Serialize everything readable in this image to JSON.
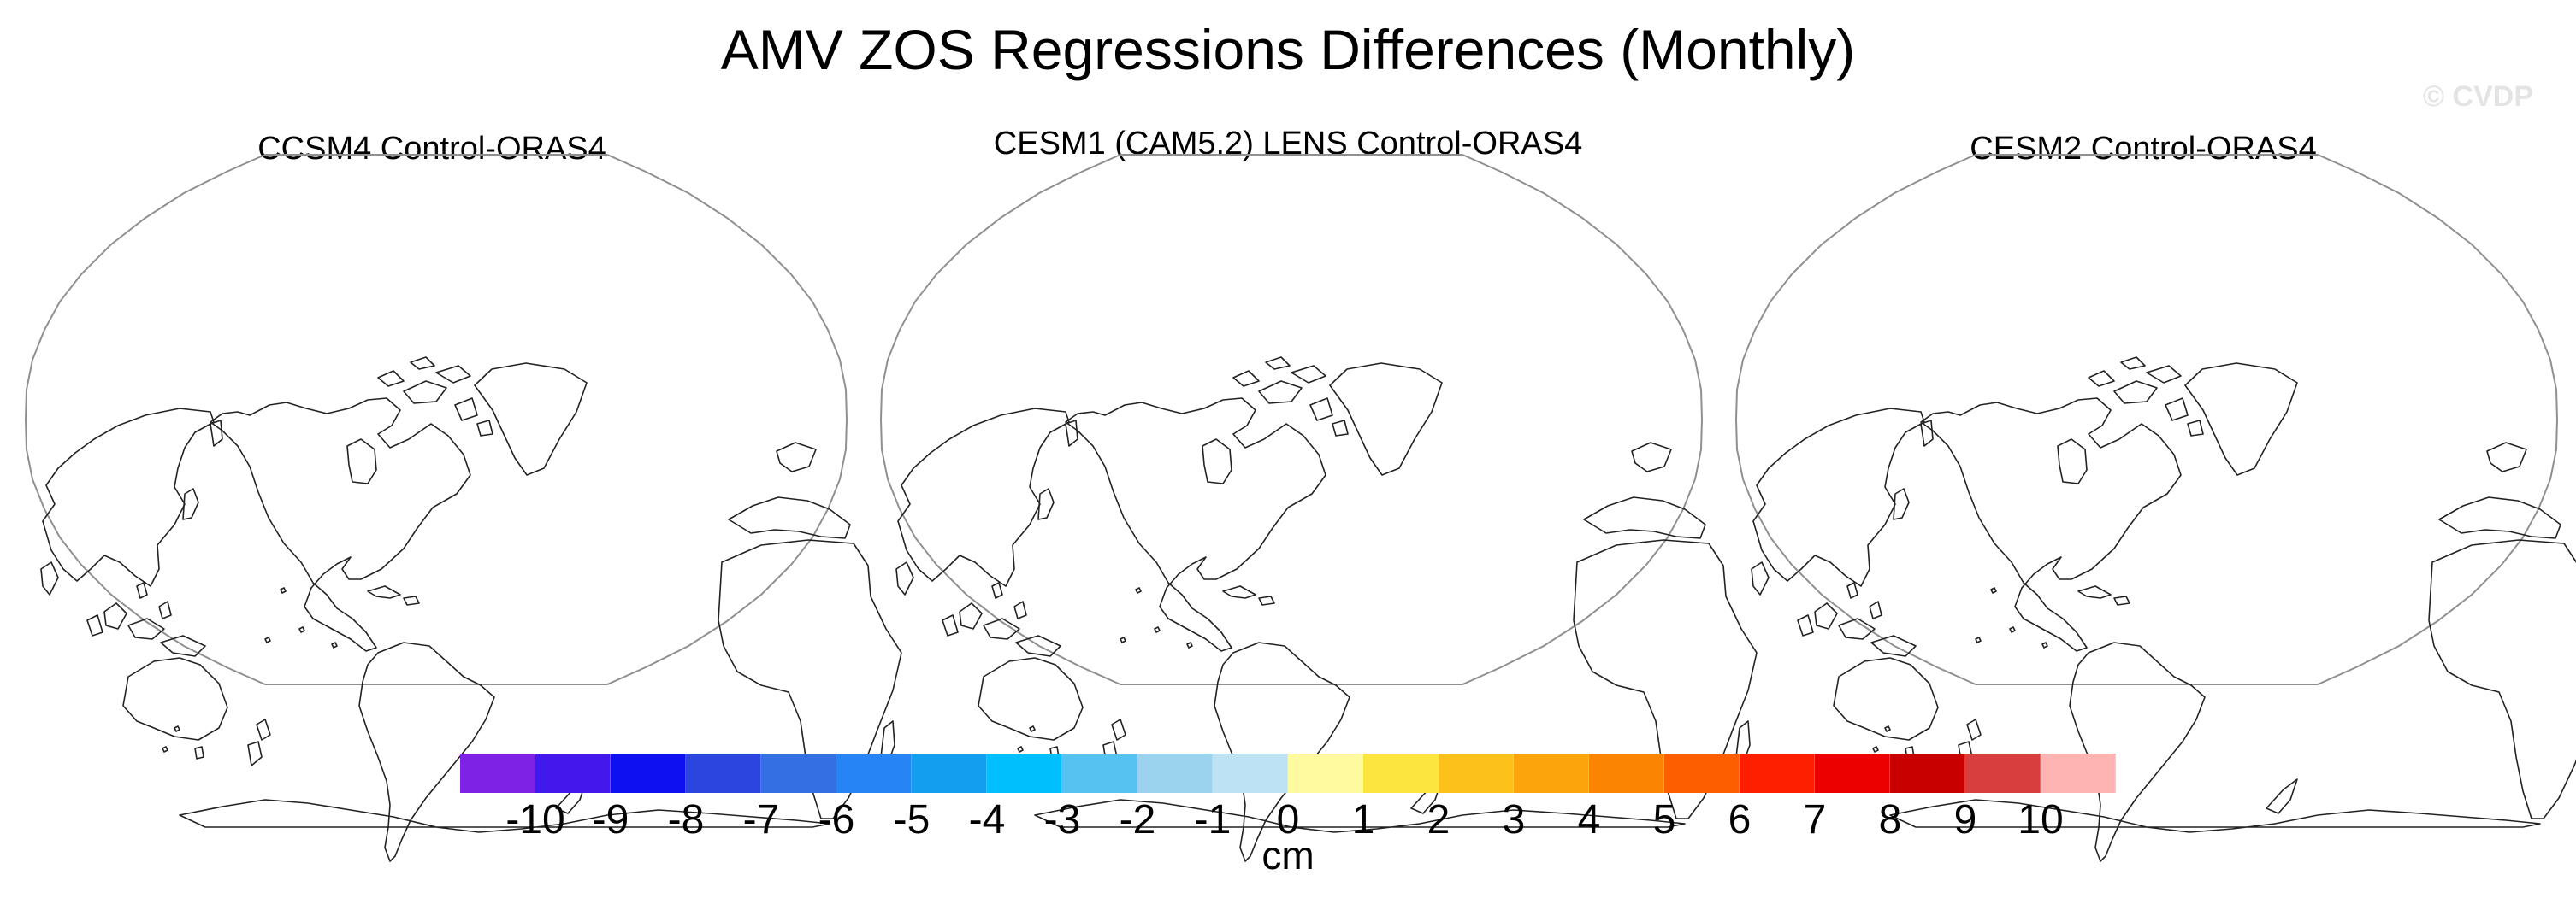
{
  "title": "AMV ZOS Regressions Differences (Monthly)",
  "watermark": "© CVDP",
  "panels": [
    {
      "title": "CCSM4 Control-ORAS4"
    },
    {
      "title": "CESM1 (CAM5.2) LENS Control-ORAS4"
    },
    {
      "title": "CESM2 Control-ORAS4"
    }
  ],
  "colorbar": {
    "units": "cm",
    "labels": [
      "-10",
      "-9",
      "-8",
      "-7",
      "-6",
      "-5",
      "-4",
      "-3",
      "-2",
      "-1",
      "0",
      "1",
      "2",
      "3",
      "4",
      "5",
      "6",
      "7",
      "8",
      "9",
      "10"
    ],
    "colors": [
      "#7e22e6",
      "#4218ec",
      "#0f10f0",
      "#2d45df",
      "#356fe4",
      "#2684f4",
      "#149eef",
      "#00bffd",
      "#54c3f2",
      "#9bd2ee",
      "#bde2f4",
      "#fff9a0",
      "#fde540",
      "#fcc11a",
      "#fba40c",
      "#fb8500",
      "#fd5f00",
      "#fe1e00",
      "#ec0000",
      "#c80000",
      "#d83e3e",
      "#ffb4b4"
    ]
  },
  "chart_data": {
    "type": "heatmap",
    "title": "AMV ZOS Regressions Differences (Monthly)",
    "subplots": [
      "CCSM4 Control-ORAS4",
      "CESM1 (CAM5.2) LENS Control-ORAS4",
      "CESM2 Control-ORAS4"
    ],
    "units": "cm",
    "levels": [
      -10,
      -9,
      -8,
      -7,
      -6,
      -5,
      -4,
      -3,
      -2,
      -1,
      0,
      1,
      2,
      3,
      4,
      5,
      6,
      7,
      8,
      9,
      10
    ],
    "projection": "robinson, centered on the Pacific",
    "field_visible": false
  }
}
